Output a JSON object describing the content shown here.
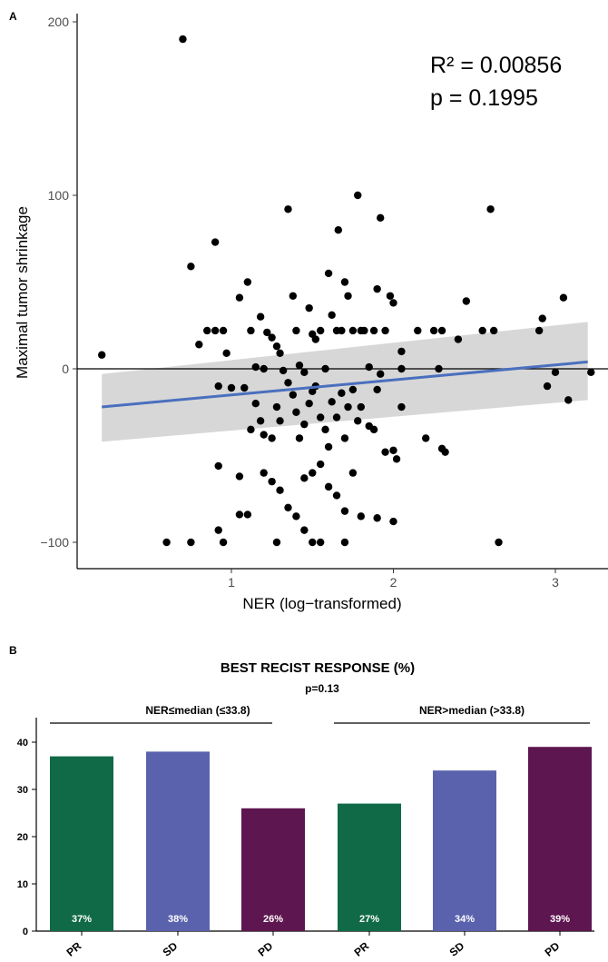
{
  "chart_data": [
    {
      "panel": "A",
      "type": "scatter",
      "xlabel": "NER (log−transformed)",
      "ylabel": "Maximal tumor shrinkage",
      "xlim": [
        0.15,
        3.25
      ],
      "ylim": [
        -115,
        205
      ],
      "xticks": [
        1,
        2,
        3
      ],
      "yticks": [
        -100,
        0,
        100,
        200
      ],
      "ytick_labels": [
        "−100",
        "0",
        "100",
        "200"
      ],
      "annotations": [
        "R² = 0.00856",
        "p = 0.1995"
      ],
      "reference_line_y": 0,
      "fit": {
        "x": [
          0.2,
          3.2
        ],
        "y": [
          -22,
          4
        ],
        "ci_lower": [
          -42,
          -18
        ],
        "ci_upper": [
          -3,
          27
        ]
      },
      "colors": {
        "points": "#000000",
        "fit": "#4a6fbe",
        "ci": "#d3d3d3"
      },
      "points": [
        [
          0.7,
          190
        ],
        [
          0.2,
          8
        ],
        [
          0.75,
          59
        ],
        [
          0.9,
          73
        ],
        [
          0.8,
          14
        ],
        [
          0.85,
          22
        ],
        [
          0.9,
          22
        ],
        [
          0.95,
          22
        ],
        [
          0.97,
          9
        ],
        [
          1.05,
          41
        ],
        [
          1.1,
          50
        ],
        [
          1.12,
          22
        ],
        [
          1.15,
          1
        ],
        [
          1.2,
          0
        ],
        [
          1.18,
          30
        ],
        [
          1.22,
          21
        ],
        [
          1.25,
          18
        ],
        [
          1.28,
          13
        ],
        [
          1.3,
          9
        ],
        [
          1.32,
          -1
        ],
        [
          1.35,
          92
        ],
        [
          1.38,
          42
        ],
        [
          1.4,
          22
        ],
        [
          1.42,
          2
        ],
        [
          1.45,
          -2
        ],
        [
          1.48,
          35
        ],
        [
          1.5,
          20
        ],
        [
          1.52,
          17
        ],
        [
          1.55,
          22
        ],
        [
          1.58,
          0
        ],
        [
          1.6,
          55
        ],
        [
          1.62,
          31
        ],
        [
          1.65,
          22
        ],
        [
          1.68,
          22
        ],
        [
          1.7,
          50
        ],
        [
          1.72,
          42
        ],
        [
          1.75,
          22
        ],
        [
          1.78,
          100
        ],
        [
          1.8,
          22
        ],
        [
          1.82,
          22
        ],
        [
          1.85,
          1
        ],
        [
          1.88,
          22
        ],
        [
          1.9,
          46
        ],
        [
          1.92,
          87
        ],
        [
          1.95,
          22
        ],
        [
          1.98,
          42
        ],
        [
          2.0,
          38
        ],
        [
          2.05,
          10
        ],
        [
          1.66,
          80
        ],
        [
          2.15,
          22
        ],
        [
          2.25,
          22
        ],
        [
          2.3,
          22
        ],
        [
          2.4,
          17
        ],
        [
          2.45,
          39
        ],
        [
          2.55,
          22
        ],
        [
          2.6,
          92
        ],
        [
          2.62,
          22
        ],
        [
          2.9,
          22
        ],
        [
          2.92,
          29
        ],
        [
          0.92,
          -10
        ],
        [
          1.0,
          -11
        ],
        [
          1.08,
          -11
        ],
        [
          1.15,
          -20
        ],
        [
          1.12,
          -35
        ],
        [
          1.18,
          -30
        ],
        [
          1.2,
          -38
        ],
        [
          1.25,
          -40
        ],
        [
          1.28,
          -22
        ],
        [
          1.3,
          -30
        ],
        [
          1.35,
          -8
        ],
        [
          1.38,
          -15
        ],
        [
          1.4,
          -25
        ],
        [
          1.42,
          -40
        ],
        [
          1.45,
          -32
        ],
        [
          1.48,
          -20
        ],
        [
          1.5,
          -13
        ],
        [
          1.52,
          -10
        ],
        [
          1.55,
          -28
        ],
        [
          1.58,
          -35
        ],
        [
          1.6,
          -45
        ],
        [
          1.62,
          -19
        ],
        [
          1.65,
          -28
        ],
        [
          1.68,
          -14
        ],
        [
          1.7,
          -40
        ],
        [
          1.72,
          -22
        ],
        [
          1.75,
          -12
        ],
        [
          1.78,
          -30
        ],
        [
          1.8,
          -22
        ],
        [
          1.85,
          -33
        ],
        [
          1.88,
          -35
        ],
        [
          1.9,
          -12
        ],
        [
          1.95,
          -48
        ],
        [
          2.0,
          -47
        ],
        [
          2.02,
          -52
        ],
        [
          2.05,
          -22
        ],
        [
          2.2,
          -40
        ],
        [
          2.3,
          -46
        ],
        [
          2.32,
          -48
        ],
        [
          0.92,
          -56
        ],
        [
          1.05,
          -62
        ],
        [
          1.2,
          -60
        ],
        [
          1.25,
          -65
        ],
        [
          1.3,
          -70
        ],
        [
          1.35,
          -80
        ],
        [
          1.4,
          -85
        ],
        [
          1.45,
          -63
        ],
        [
          1.5,
          -60
        ],
        [
          1.55,
          -55
        ],
        [
          1.6,
          -68
        ],
        [
          1.65,
          -73
        ],
        [
          1.7,
          -82
        ],
        [
          1.75,
          -60
        ],
        [
          1.8,
          -85
        ],
        [
          1.9,
          -86
        ],
        [
          2.0,
          -88
        ],
        [
          1.05,
          -84
        ],
        [
          1.1,
          -84
        ],
        [
          0.6,
          -100
        ],
        [
          0.75,
          -100
        ],
        [
          0.92,
          -93
        ],
        [
          0.95,
          -100
        ],
        [
          1.28,
          -100
        ],
        [
          1.45,
          -93
        ],
        [
          1.5,
          -100
        ],
        [
          1.55,
          -100
        ],
        [
          1.7,
          -100
        ],
        [
          2.65,
          -100
        ],
        [
          2.95,
          -10
        ],
        [
          3.0,
          -2
        ],
        [
          3.08,
          -18
        ],
        [
          3.05,
          41
        ],
        [
          3.22,
          -2
        ],
        [
          2.28,
          0
        ],
        [
          2.05,
          0
        ],
        [
          1.92,
          -3
        ]
      ]
    },
    {
      "panel": "B",
      "type": "bar",
      "title": "BEST RECIST RESPONSE (%)",
      "pvalue": "p=0.13",
      "groups": [
        {
          "label": "NER≤median (≤33.8)",
          "categories": [
            "PR",
            "SD",
            "PD"
          ],
          "values": [
            37,
            38,
            26
          ],
          "labels": [
            "37%",
            "38%",
            "26%"
          ]
        },
        {
          "label": "NER>median (>33.8)",
          "categories": [
            "PR",
            "SD",
            "PD"
          ],
          "values": [
            27,
            34,
            39
          ],
          "labels": [
            "27%",
            "34%",
            "39%"
          ]
        }
      ],
      "ylim": [
        0,
        45
      ],
      "yticks": [
        0,
        10,
        20,
        30,
        40
      ],
      "colors": {
        "PR": "#106a47",
        "SD": "#5a62ad",
        "PD": "#5d164f"
      }
    }
  ]
}
